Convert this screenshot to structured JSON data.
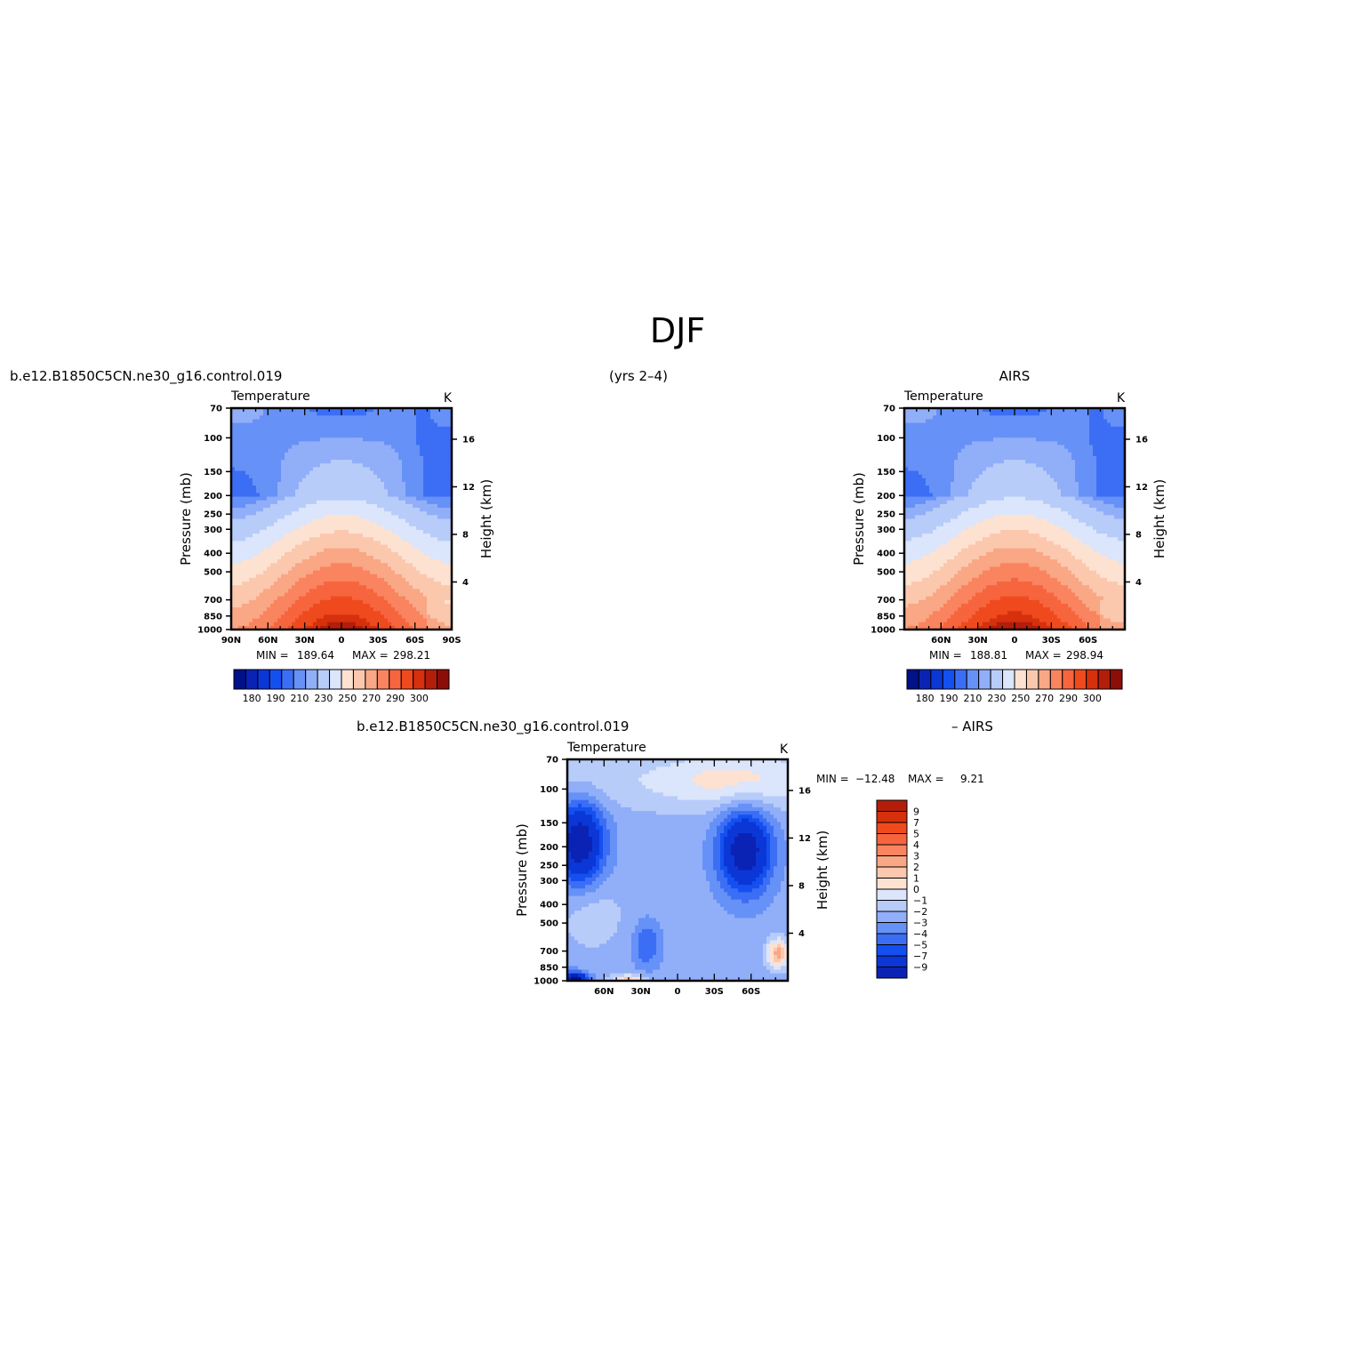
{
  "figure": {
    "season": "DJF",
    "case_name": "b.e12.B1850C5CN.ne30_g16.control.019",
    "years": "(yrs 2–4)",
    "obs_name": "AIRS",
    "diff_label": "– AIRS"
  },
  "colors": {
    "abs_levels": [
      "#00118a",
      "#0a23b4",
      "#0b37d6",
      "#1450f0",
      "#3c6ef5",
      "#6691f7",
      "#91aef8",
      "#b8ccfa",
      "#dbe5fb",
      "#fde2d2",
      "#fbc8ae",
      "#f9a785",
      "#f9845f",
      "#f6653e",
      "#ef4a1e",
      "#d6300d",
      "#b31e0a",
      "#8b0f08"
    ],
    "diff_levels": [
      "#00118a",
      "#0a23b4",
      "#0b37d6",
      "#1450f0",
      "#3c6ef5",
      "#6691f7",
      "#91aef8",
      "#b8ccfa",
      "#dbe5fb",
      "#fde2d2",
      "#fbc8ae",
      "#f9a785",
      "#f9845f",
      "#f6653e",
      "#ef4a1e",
      "#d6300d",
      "#b31e0a",
      "#8b0f08"
    ]
  },
  "chart_data": [
    {
      "type": "contour",
      "id": "model",
      "title": "Temperature",
      "units": "K",
      "xlabel": "",
      "ylabel": "Pressure (mb)",
      "ylabel_right": "Height (km)",
      "x_ticks": [
        "90N",
        "60N",
        "30N",
        "0",
        "30S",
        "60S",
        "90S"
      ],
      "x_tick_lat": [
        90,
        60,
        30,
        0,
        -30,
        -60,
        -90
      ],
      "x_range": [
        90,
        -90
      ],
      "y_ticks": [
        70,
        100,
        150,
        200,
        250,
        300,
        400,
        500,
        700,
        850,
        1000
      ],
      "y_range": [
        1000,
        70
      ],
      "y_scale": "log",
      "height_ticks_km": [
        4,
        8,
        12,
        16
      ],
      "stats": {
        "min_label": "MIN =",
        "min": "189.64",
        "max_label": "MAX =",
        "max": "298.21"
      },
      "colorbar_labels": [
        "180",
        "190",
        "210",
        "230",
        "250",
        "270",
        "290",
        "300"
      ],
      "model": {
        "base_p": [
          1000,
          850,
          700,
          500,
          400,
          300,
          250,
          200,
          150,
          100,
          70
        ],
        "base_t": [
          290,
          282,
          273,
          257,
          244,
          228,
          221,
          215,
          212,
          205,
          208
        ]
      }
    },
    {
      "type": "contour",
      "id": "obs",
      "title": "Temperature",
      "units": "K",
      "xlabel": "",
      "ylabel": "Pressure (mb)",
      "ylabel_right": "Height (km)",
      "x_ticks": [
        "60N",
        "30N",
        "0",
        "30S",
        "60S"
      ],
      "x_tick_lat": [
        60,
        30,
        0,
        -30,
        -60
      ],
      "x_range": [
        90,
        -90
      ],
      "y_ticks": [
        70,
        100,
        150,
        200,
        250,
        300,
        400,
        500,
        700,
        850,
        1000
      ],
      "y_range": [
        1000,
        70
      ],
      "y_scale": "log",
      "height_ticks_km": [
        4,
        8,
        12,
        16
      ],
      "stats": {
        "min_label": "MIN =",
        "min": "188.81",
        "max_label": "MAX =",
        "max": "298.94"
      },
      "colorbar_labels": [
        "180",
        "190",
        "210",
        "230",
        "250",
        "270",
        "290",
        "300"
      ]
    },
    {
      "type": "contour",
      "id": "diff",
      "title": "Temperature",
      "units": "K",
      "xlabel": "",
      "ylabel": "Pressure (mb)",
      "ylabel_right": "Height (km)",
      "x_ticks": [
        "60N",
        "30N",
        "0",
        "30S",
        "60S"
      ],
      "x_tick_lat": [
        60,
        30,
        0,
        -30,
        -60
      ],
      "x_range": [
        90,
        -90
      ],
      "y_ticks": [
        70,
        100,
        150,
        200,
        250,
        300,
        400,
        500,
        700,
        850,
        1000
      ],
      "y_range": [
        1000,
        70
      ],
      "y_scale": "log",
      "height_ticks_km": [
        4,
        8,
        12,
        16
      ],
      "stats": {
        "min_label": "MIN =",
        "min": "−12.48",
        "max_label": "MAX =",
        "max": "9.21"
      },
      "colorbar_labels": [
        "9",
        "7",
        "5",
        "4",
        "3",
        "2",
        "1",
        "0",
        "−1",
        "−2",
        "−3",
        "−4",
        "−5",
        "−7",
        "−9"
      ]
    }
  ]
}
